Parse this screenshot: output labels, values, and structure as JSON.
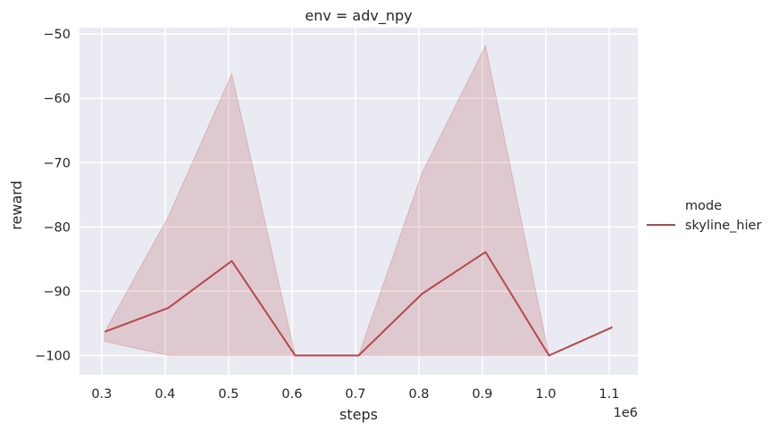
{
  "chart_data": {
    "type": "line",
    "title": "env = adv_npy",
    "xlabel": "steps",
    "ylabel": "reward",
    "x_offset_label": "1e6",
    "xlim": [
      0.265,
      1.145
    ],
    "ylim": [
      -103.0,
      -49.0
    ],
    "xticks": [
      0.3,
      0.4,
      0.5,
      0.6,
      0.7,
      0.8,
      0.9,
      1.0,
      1.1
    ],
    "xtick_labels": [
      "0.3",
      "0.4",
      "0.5",
      "0.6",
      "0.7",
      "0.8",
      "0.9",
      "1.0",
      "1.1"
    ],
    "yticks": [
      -100,
      -90,
      -80,
      -70,
      -60,
      -50
    ],
    "ytick_labels": [
      "−100",
      "−90",
      "−80",
      "−70",
      "−60",
      "−50"
    ],
    "grid": true,
    "legend": {
      "title": "mode",
      "placement": "right",
      "entries": [
        "skyline_hier"
      ]
    },
    "series": [
      {
        "name": "skyline_hier",
        "color": "#b5484a",
        "x": [
          0.305,
          0.405,
          0.505,
          0.605,
          0.705,
          0.805,
          0.905,
          1.005,
          1.105
        ],
        "values": [
          -96.3,
          -92.6,
          -85.3,
          -100.0,
          -100.0,
          -90.4,
          -83.9,
          -100.0,
          -95.6
        ],
        "ci_upper": [
          -96.3,
          -78.4,
          -56.2,
          -100.0,
          -100.0,
          -71.6,
          -51.8,
          -100.0,
          null
        ],
        "ci_lower": [
          -97.8,
          -100.0,
          -100.0,
          -100.0,
          -100.0,
          -100.0,
          -100.0,
          -100.0,
          null
        ]
      }
    ]
  },
  "colors": {
    "plot_background": "#eaeaf2",
    "grid": "#ffffff",
    "line": "#b5484a",
    "band": "#b5484a"
  }
}
